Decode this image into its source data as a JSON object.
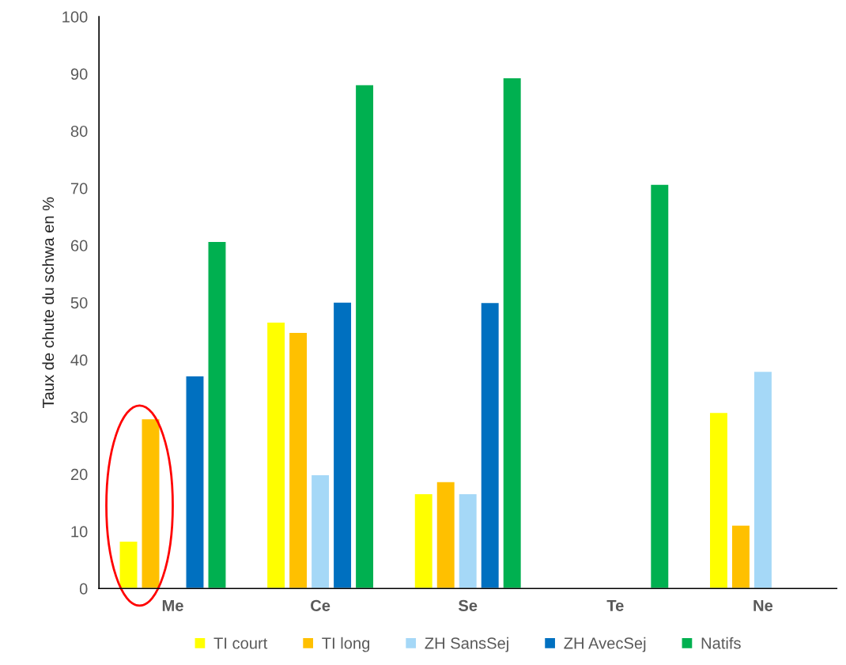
{
  "chart_data": {
    "type": "bar",
    "ylabel": "Taux de chute du schwa en %",
    "categories": [
      "Me",
      "Ce",
      "Se",
      "Te",
      "Ne"
    ],
    "series": [
      {
        "name": "TI court",
        "color": "#ffff00",
        "values": [
          8.3,
          46.6,
          16.6,
          null,
          30.8
        ]
      },
      {
        "name": "TI long",
        "color": "#ffc000",
        "values": [
          29.7,
          44.8,
          18.7,
          null,
          11.1
        ]
      },
      {
        "name": "ZH SansSej",
        "color": "#a5d8f7",
        "values": [
          null,
          19.9,
          16.6,
          null,
          38.0
        ]
      },
      {
        "name": "ZH AvecSej",
        "color": "#0070c0",
        "values": [
          37.2,
          50.1,
          50.0,
          null,
          null
        ]
      },
      {
        "name": "Natifs",
        "color": "#00b050",
        "values": [
          60.7,
          88.1,
          89.3,
          70.7,
          null
        ]
      }
    ],
    "ylim": [
      0,
      100
    ],
    "yticks": [
      0,
      10,
      20,
      30,
      40,
      50,
      60,
      70,
      80,
      90,
      100
    ],
    "grid": false,
    "legend": "bottom"
  }
}
